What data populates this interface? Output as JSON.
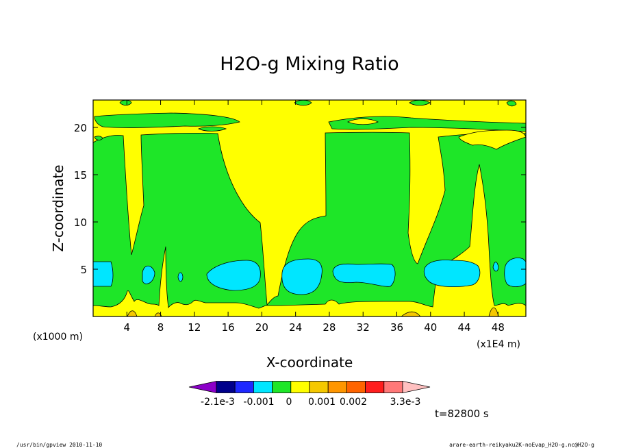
{
  "chart_data": {
    "type": "heatmap",
    "title": "H2O-g Mixing Ratio",
    "xlabel": "X-coordinate",
    "ylabel": "Z-coordinate",
    "x_unit_left": "(x1000 m)",
    "x_unit_right": "(x1E4 m)",
    "xlim": [
      0,
      51.3
    ],
    "ylim": [
      0,
      22.9
    ],
    "xticks": [
      "4",
      "8",
      "12",
      "16",
      "20",
      "24",
      "28",
      "32",
      "36",
      "40",
      "44",
      "48"
    ],
    "xtick_values": [
      4,
      8,
      12,
      16,
      20,
      24,
      28,
      32,
      36,
      40,
      44,
      48
    ],
    "yticks": [
      "5",
      "10",
      "15",
      "20"
    ],
    "ytick_values": [
      5,
      10,
      15,
      20
    ],
    "colorbar": {
      "colors": [
        "#8b00c8",
        "#00008b",
        "#1e28ff",
        "#00e6ff",
        "#1ee628",
        "#ffff00",
        "#f5c800",
        "#ff9600",
        "#ff6400",
        "#ff1e1e",
        "#ff7878",
        "#ffc0c0"
      ],
      "labels": [
        "-2.1e-3",
        "-0.001",
        "0",
        "0.001",
        "0.002",
        "3.3e-3"
      ]
    },
    "fill_colors": {
      "background": "#ffff00",
      "band": "#1ee628",
      "core": "#00e6ff",
      "spot": "#f5c800"
    }
  },
  "time_label": "t=82800 s",
  "footer": {
    "left": "/usr/bin/gpview   2010-11-10",
    "right": "arare-earth-reikyaku2K-noEvap_H2O-g.nc@H2O-g"
  }
}
